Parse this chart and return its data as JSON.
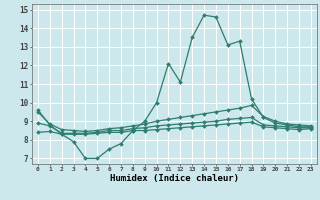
{
  "xlabel": "Humidex (Indice chaleur)",
  "xlim": [
    -0.5,
    23.5
  ],
  "ylim": [
    6.7,
    15.3
  ],
  "yticks": [
    7,
    8,
    9,
    10,
    11,
    12,
    13,
    14,
    15
  ],
  "xticks": [
    0,
    1,
    2,
    3,
    4,
    5,
    6,
    7,
    8,
    9,
    10,
    11,
    12,
    13,
    14,
    15,
    16,
    17,
    18,
    19,
    20,
    21,
    22,
    23
  ],
  "line_color": "#2e7d6e",
  "bg_color": "#cce8ec",
  "grid_color": "#ffffff",
  "lines": [
    {
      "x": [
        0,
        1,
        2,
        3,
        4,
        5,
        6,
        7,
        8,
        9,
        10,
        11,
        12,
        13,
        14,
        15,
        16,
        17,
        18,
        19,
        20,
        21,
        22,
        23
      ],
      "y": [
        9.6,
        8.8,
        8.3,
        7.9,
        7.0,
        7.0,
        7.5,
        7.8,
        8.5,
        9.0,
        10.0,
        12.1,
        11.1,
        13.5,
        14.7,
        14.6,
        13.1,
        13.3,
        10.2,
        9.2,
        8.9,
        8.8,
        8.7,
        8.7
      ]
    },
    {
      "x": [
        0,
        1,
        2,
        3,
        4,
        5,
        6,
        7,
        8,
        9,
        10,
        11,
        12,
        13,
        14,
        15,
        16,
        17,
        18,
        19,
        20,
        21,
        22,
        23
      ],
      "y": [
        9.5,
        8.85,
        8.55,
        8.5,
        8.45,
        8.5,
        8.6,
        8.65,
        8.75,
        8.85,
        9.0,
        9.1,
        9.2,
        9.3,
        9.4,
        9.5,
        9.6,
        9.7,
        9.85,
        9.25,
        9.0,
        8.85,
        8.8,
        8.75
      ]
    },
    {
      "x": [
        0,
        1,
        2,
        3,
        4,
        5,
        6,
        7,
        8,
        9,
        10,
        11,
        12,
        13,
        14,
        15,
        16,
        17,
        18,
        19,
        20,
        21,
        22,
        23
      ],
      "y": [
        8.9,
        8.75,
        8.35,
        8.35,
        8.35,
        8.4,
        8.5,
        8.5,
        8.6,
        8.65,
        8.75,
        8.8,
        8.85,
        8.9,
        8.95,
        9.0,
        9.1,
        9.15,
        9.2,
        8.8,
        8.75,
        8.7,
        8.65,
        8.65
      ]
    },
    {
      "x": [
        0,
        1,
        2,
        3,
        4,
        5,
        6,
        7,
        8,
        9,
        10,
        11,
        12,
        13,
        14,
        15,
        16,
        17,
        18,
        19,
        20,
        21,
        22,
        23
      ],
      "y": [
        8.4,
        8.45,
        8.3,
        8.3,
        8.3,
        8.35,
        8.4,
        8.4,
        8.5,
        8.5,
        8.55,
        8.6,
        8.65,
        8.7,
        8.75,
        8.8,
        8.85,
        8.9,
        8.95,
        8.7,
        8.65,
        8.6,
        8.55,
        8.6
      ]
    }
  ]
}
